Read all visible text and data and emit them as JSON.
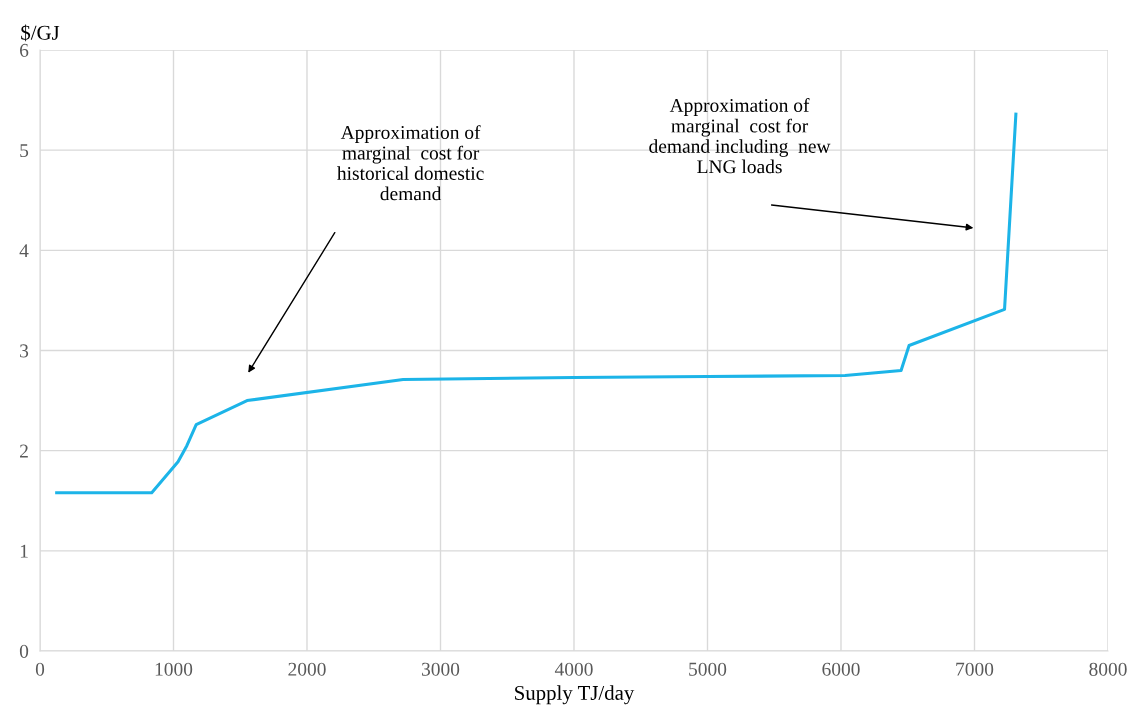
{
  "chart_data": {
    "type": "line",
    "ylabel": "$/GJ",
    "xlabel": "Supply TJ/day",
    "x": [
      125,
      837,
      1034,
      1100,
      1170,
      1551,
      2720,
      4000,
      5000,
      6030,
      6450,
      6510,
      7225,
      7310
    ],
    "series": [
      {
        "color": "#1cb4e8",
        "values": [
          1.58,
          1.58,
          1.89,
          2.05,
          2.26,
          2.5,
          2.71,
          2.73,
          2.74,
          2.75,
          2.8,
          3.05,
          3.41,
          5.36
        ]
      }
    ],
    "xlim": [
      0,
      8000
    ],
    "xticks": [
      0,
      1000,
      2000,
      3000,
      4000,
      5000,
      6000,
      7000,
      8000
    ],
    "ylim": [
      0,
      6
    ],
    "yticks": [
      0,
      1,
      2,
      3,
      4,
      5,
      6
    ],
    "grid": true,
    "legend": false,
    "marker": "none",
    "line_style": "solid",
    "annotations": [
      "Approximation of\nmarginal  cost for\nhistorical domestic\ndemand",
      "Approximation of\nmarginal  cost for\ndemand including  new\nLNG loads"
    ]
  }
}
